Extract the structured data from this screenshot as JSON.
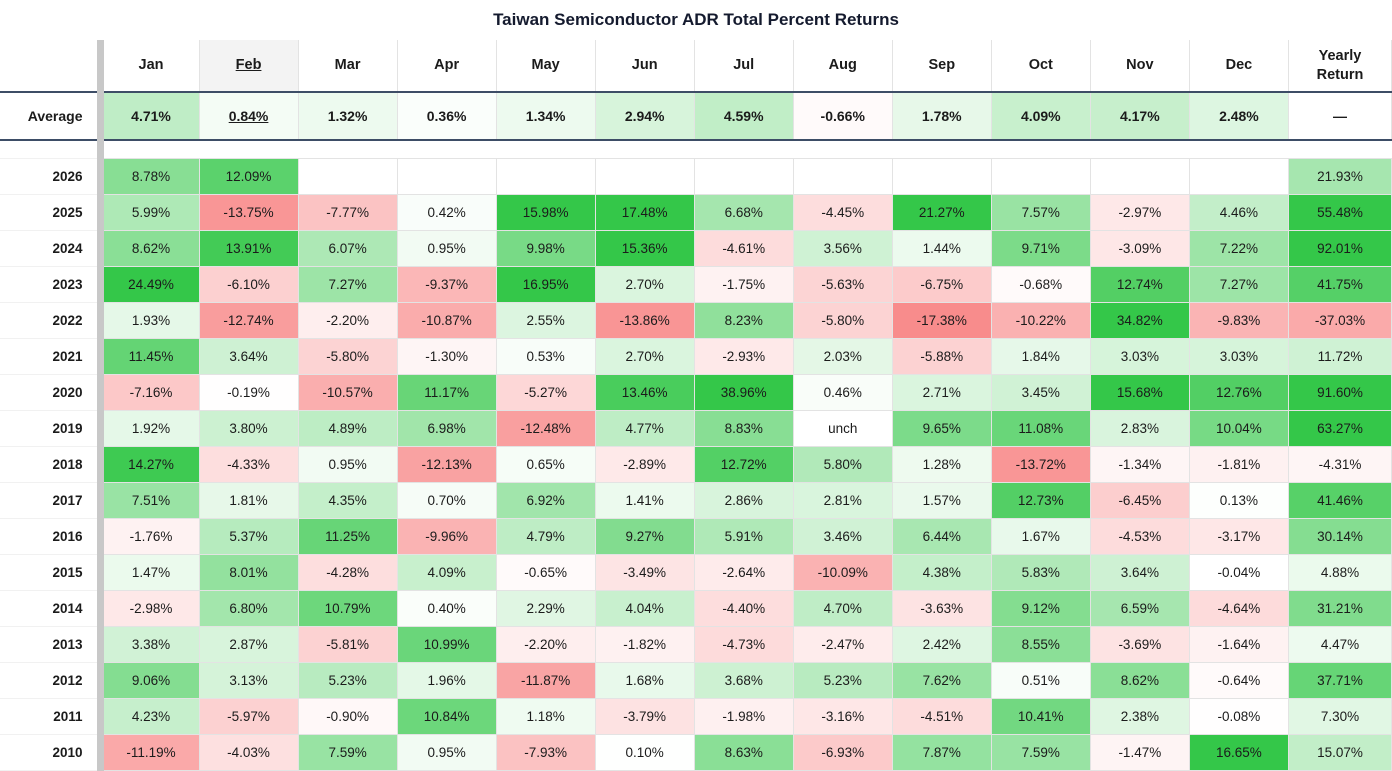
{
  "title": "Taiwan Semiconductor ADR Total Percent Returns",
  "average_label": "Average",
  "sorted_column": "Feb",
  "colors": {
    "positive_max": "#34c749",
    "negative_max": "#f88c8c",
    "sorted_header_bg": "#f3f3f3",
    "average_border": "#3d4d66",
    "divider_bar": "#c8c8c8",
    "grid_line": "#e3e3e3",
    "text": "#1b1b1b"
  },
  "chart_data": {
    "type": "heatmap",
    "title": "Taiwan Semiconductor ADR Total Percent Returns",
    "unit": "percent",
    "columns": [
      "Jan",
      "Feb",
      "Mar",
      "Apr",
      "May",
      "Jun",
      "Jul",
      "Aug",
      "Sep",
      "Oct",
      "Nov",
      "Dec",
      "Yearly Return"
    ],
    "average": [
      4.71,
      0.84,
      1.32,
      0.36,
      1.34,
      2.94,
      4.59,
      -0.66,
      1.78,
      4.09,
      4.17,
      2.48,
      "—"
    ],
    "rows": [
      {
        "year": 2026,
        "values": [
          8.78,
          12.09,
          null,
          null,
          null,
          null,
          null,
          null,
          null,
          null,
          null,
          null,
          21.93
        ]
      },
      {
        "year": 2025,
        "values": [
          5.99,
          -13.75,
          -7.77,
          0.42,
          15.98,
          17.48,
          6.68,
          -4.45,
          21.27,
          7.57,
          -2.97,
          4.46,
          55.48
        ]
      },
      {
        "year": 2024,
        "values": [
          8.62,
          13.91,
          6.07,
          0.95,
          9.98,
          15.36,
          -4.61,
          3.56,
          1.44,
          9.71,
          -3.09,
          7.22,
          92.01
        ]
      },
      {
        "year": 2023,
        "values": [
          24.49,
          -6.1,
          7.27,
          -9.37,
          16.95,
          2.7,
          -1.75,
          -5.63,
          -6.75,
          -0.68,
          12.74,
          7.27,
          41.75
        ]
      },
      {
        "year": 2022,
        "values": [
          1.93,
          -12.74,
          -2.2,
          -10.87,
          2.55,
          -13.86,
          8.23,
          -5.8,
          -17.38,
          -10.22,
          34.82,
          -9.83,
          -37.03
        ]
      },
      {
        "year": 2021,
        "values": [
          11.45,
          3.64,
          -5.8,
          -1.3,
          0.53,
          2.7,
          -2.93,
          2.03,
          -5.88,
          1.84,
          3.03,
          3.03,
          11.72
        ]
      },
      {
        "year": 2020,
        "values": [
          -7.16,
          -0.19,
          -10.57,
          11.17,
          -5.27,
          13.46,
          38.96,
          0.46,
          2.71,
          3.45,
          15.68,
          12.76,
          91.6
        ]
      },
      {
        "year": 2019,
        "values": [
          1.92,
          3.8,
          4.89,
          6.98,
          -12.48,
          4.77,
          8.83,
          "unch",
          9.65,
          11.08,
          2.83,
          10.04,
          63.27
        ]
      },
      {
        "year": 2018,
        "values": [
          14.27,
          -4.33,
          0.95,
          -12.13,
          0.65,
          -2.89,
          12.72,
          5.8,
          1.28,
          -13.72,
          -1.34,
          -1.81,
          -4.31
        ]
      },
      {
        "year": 2017,
        "values": [
          7.51,
          1.81,
          4.35,
          0.7,
          6.92,
          1.41,
          2.86,
          2.81,
          1.57,
          12.73,
          -6.45,
          0.13,
          41.46
        ]
      },
      {
        "year": 2016,
        "values": [
          -1.76,
          5.37,
          11.25,
          -9.96,
          4.79,
          9.27,
          5.91,
          3.46,
          6.44,
          1.67,
          -4.53,
          -3.17,
          30.14
        ]
      },
      {
        "year": 2015,
        "values": [
          1.47,
          8.01,
          -4.28,
          4.09,
          -0.65,
          -3.49,
          -2.64,
          -10.09,
          4.38,
          5.83,
          3.64,
          -0.04,
          4.88
        ]
      },
      {
        "year": 2014,
        "values": [
          -2.98,
          6.8,
          10.79,
          0.4,
          2.29,
          4.04,
          -4.4,
          4.7,
          -3.63,
          9.12,
          6.59,
          -4.64,
          31.21
        ]
      },
      {
        "year": 2013,
        "values": [
          3.38,
          2.87,
          -5.81,
          10.99,
          -2.2,
          -1.82,
          -4.73,
          -2.47,
          2.42,
          8.55,
          -3.69,
          -1.64,
          4.47
        ]
      },
      {
        "year": 2012,
        "values": [
          9.06,
          3.13,
          5.23,
          1.96,
          -11.87,
          1.68,
          3.68,
          5.23,
          7.62,
          0.51,
          8.62,
          -0.64,
          37.71
        ]
      },
      {
        "year": 2011,
        "values": [
          4.23,
          -5.97,
          -0.9,
          10.84,
          1.18,
          -3.79,
          -1.98,
          -3.16,
          -4.51,
          10.41,
          2.38,
          -0.08,
          7.3
        ]
      },
      {
        "year": 2010,
        "values": [
          -11.19,
          -4.03,
          7.59,
          0.95,
          -7.93,
          0.1,
          8.63,
          -6.93,
          7.87,
          7.59,
          -1.47,
          16.65,
          15.07
        ]
      }
    ]
  }
}
